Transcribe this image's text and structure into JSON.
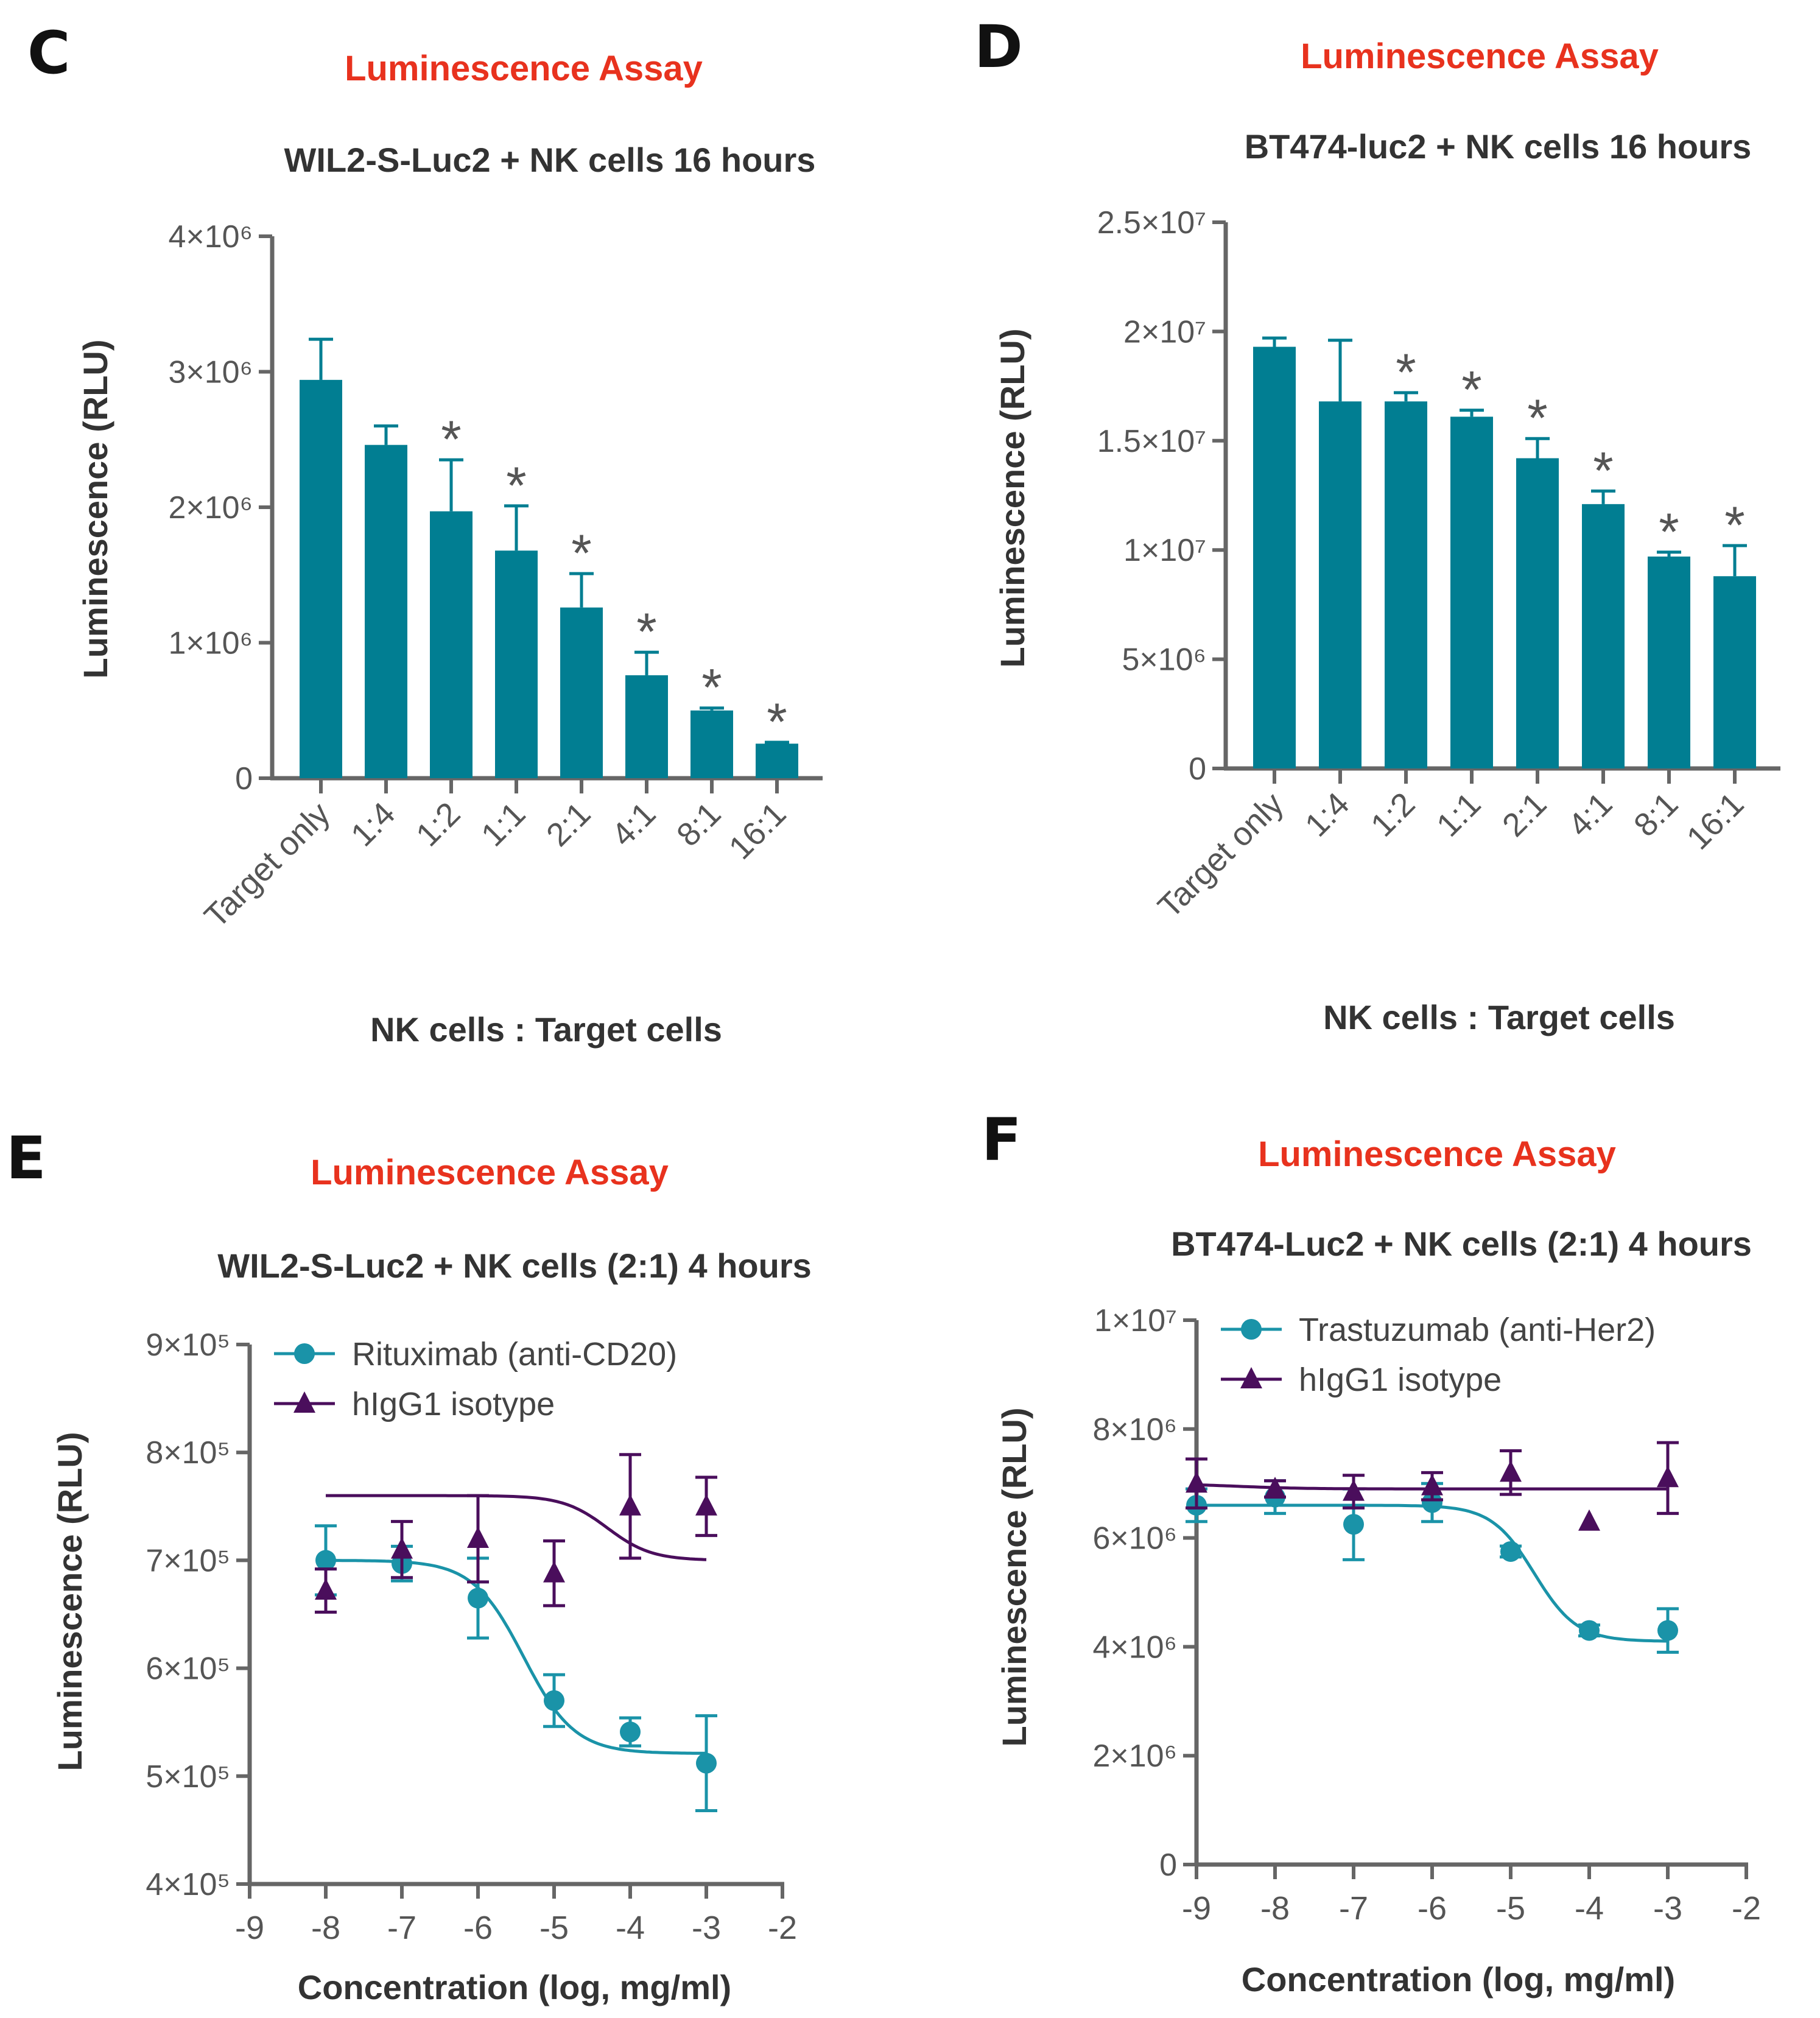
{
  "colors": {
    "assay": "#e8321e",
    "bar": "#017e92",
    "teal": "#1a93a8",
    "purple": "#4a0e5c",
    "axis": "#666666",
    "text": "#555555"
  },
  "chart_data": [
    {
      "panel": "C",
      "type": "bar",
      "assay_title": "Luminescence Assay",
      "title": "WIL2-S-Luc2 + NK cells 16 hours",
      "ylabel": "Luminescence (RLU)",
      "xlabel": "NK cells : Target cells",
      "ylim": [
        0,
        4000000
      ],
      "yticks": [
        {
          "v": 0,
          "label": "0"
        },
        {
          "v": 1000000,
          "label": "1×10⁶"
        },
        {
          "v": 2000000,
          "label": "2×10⁶"
        },
        {
          "v": 3000000,
          "label": "3×10⁶"
        },
        {
          "v": 4000000,
          "label": "4×10⁶"
        }
      ],
      "categories": [
        "Target only",
        "1:4",
        "1:2",
        "1:1",
        "2:1",
        "4:1",
        "8:1",
        "16:1"
      ],
      "values": [
        2940000,
        2460000,
        1970000,
        1680000,
        1260000,
        760000,
        500000,
        255000
      ],
      "errors": [
        300000,
        140000,
        380000,
        330000,
        250000,
        170000,
        18000,
        10000
      ],
      "significance": [
        "",
        "",
        "*",
        "*",
        "*",
        "*",
        "*",
        "*"
      ]
    },
    {
      "panel": "D",
      "type": "bar",
      "assay_title": "Luminescence Assay",
      "title": "BT474-luc2 + NK cells 16 hours",
      "ylabel": "Luminescence (RLU)",
      "xlabel": "NK cells : Target cells",
      "ylim": [
        0,
        25000000
      ],
      "yticks": [
        {
          "v": 0,
          "label": "0"
        },
        {
          "v": 5000000,
          "label": "5×10⁶"
        },
        {
          "v": 10000000,
          "label": "1×10⁷"
        },
        {
          "v": 15000000,
          "label": "1.5×10⁷"
        },
        {
          "v": 20000000,
          "label": "2×10⁷"
        },
        {
          "v": 25000000,
          "label": "2.5×10⁷"
        }
      ],
      "categories": [
        "Target only",
        "1:4",
        "1:2",
        "1:1",
        "2:1",
        "4:1",
        "8:1",
        "16:1"
      ],
      "values": [
        19300000,
        16800000,
        16800000,
        16100000,
        14200000,
        12100000,
        9700000,
        8800000
      ],
      "errors": [
        400000,
        2800000,
        400000,
        300000,
        900000,
        600000,
        200000,
        1400000
      ],
      "significance": [
        "",
        "",
        "*",
        "*",
        "*",
        "*",
        "*",
        "*"
      ]
    },
    {
      "panel": "E",
      "type": "scatter",
      "assay_title": "Luminescence Assay",
      "title": "WIL2-S-Luc2 + NK cells (2:1) 4 hours",
      "ylabel": "Luminescence (RLU)",
      "xlabel": "Concentration (log, mg/ml)",
      "xlim": [
        -9,
        -2
      ],
      "ylim": [
        400000,
        900000
      ],
      "xticks": [
        -9,
        -8,
        -7,
        -6,
        -5,
        -4,
        -3,
        -2
      ],
      "yticks": [
        {
          "v": 400000,
          "label": "4×10⁵"
        },
        {
          "v": 500000,
          "label": "5×10⁵"
        },
        {
          "v": 600000,
          "label": "6×10⁵"
        },
        {
          "v": 700000,
          "label": "7×10⁵"
        },
        {
          "v": 800000,
          "label": "8×10⁵"
        },
        {
          "v": 900000,
          "label": "9×10⁵"
        }
      ],
      "series": [
        {
          "name": "Rituximab (anti-CD20)",
          "marker": "circle",
          "color": "#1a93a8",
          "x": [
            -8,
            -7,
            -6,
            -5,
            -4,
            -3
          ],
          "y": [
            700000,
            697000,
            665000,
            570000,
            541000,
            512000
          ],
          "err": [
            32000,
            16000,
            37000,
            24000,
            13000,
            44000
          ],
          "fit": {
            "bottom": 521000,
            "top": 700000,
            "logec50": -5.4,
            "hill": 1.3
          }
        },
        {
          "name": "hIgG1 isotype",
          "marker": "triangle",
          "color": "#4a0e5c",
          "x": [
            -8,
            -7,
            -6,
            -5,
            -4,
            -3
          ],
          "y": [
            672000,
            710000,
            720000,
            688000,
            750000,
            750000
          ],
          "err": [
            20000,
            26000,
            40000,
            30000,
            48000,
            27000
          ],
          "fit": {
            "bottom": 700000,
            "top": 760000,
            "logec50": -4.3,
            "hill": 1.5
          }
        }
      ]
    },
    {
      "panel": "F",
      "type": "scatter",
      "assay_title": "Luminescence Assay",
      "title": "BT474-Luc2 + NK cells (2:1) 4 hours",
      "ylabel": "Luminescence (RLU)",
      "xlabel": "Concentration (log, mg/ml)",
      "xlim": [
        -9,
        -2
      ],
      "ylim": [
        0,
        10000000
      ],
      "xticks": [
        -9,
        -8,
        -7,
        -6,
        -5,
        -4,
        -3,
        -2
      ],
      "yticks": [
        {
          "v": 0,
          "label": "0"
        },
        {
          "v": 2000000,
          "label": "2×10⁶"
        },
        {
          "v": 4000000,
          "label": "4×10⁶"
        },
        {
          "v": 6000000,
          "label": "6×10⁶"
        },
        {
          "v": 8000000,
          "label": "8×10⁶"
        },
        {
          "v": 10000000,
          "label": "1×10⁷"
        }
      ],
      "series": [
        {
          "name": "Trastuzumab (anti-Her2)",
          "marker": "circle",
          "color": "#1a93a8",
          "x": [
            -9,
            -8,
            -7,
            -6,
            -5,
            -4,
            -3
          ],
          "y": [
            6600000,
            6750000,
            6250000,
            6650000,
            5750000,
            4300000,
            4300000
          ],
          "err": [
            300000,
            300000,
            650000,
            350000,
            100000,
            100000,
            400000
          ],
          "fit": {
            "bottom": 4100000,
            "top": 6600000,
            "logec50": -4.7,
            "hill": 1.6
          }
        },
        {
          "name": "hIgG1 isotype",
          "marker": "triangle",
          "color": "#4a0e5c",
          "x": [
            -9,
            -8,
            -7,
            -6,
            -5,
            -4,
            -3
          ],
          "y": [
            7000000,
            6900000,
            6850000,
            6950000,
            7200000,
            6300000,
            7100000
          ],
          "err": [
            450000,
            150000,
            300000,
            250000,
            400000,
            0,
            650000
          ],
          "fit": {
            "bottom": 6900000,
            "top": 7000000,
            "logec50": -8.5,
            "hill": 1.0
          }
        }
      ]
    }
  ]
}
